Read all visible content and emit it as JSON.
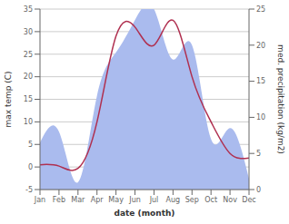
{
  "chart_data": {
    "type": "line",
    "xlabel": "date (month)",
    "ylabel": "max temp (C)",
    "y2label": "med. precipitation (kg/m2)",
    "categories": [
      "Jan",
      "Feb",
      "Mar",
      "Apr",
      "May",
      "Jun",
      "Jul",
      "Aug",
      "Sep",
      "Oct",
      "Nov",
      "Dec"
    ],
    "series": [
      {
        "type": "area",
        "axis": "y2",
        "color": "#aabbee",
        "values": [
          6.5,
          8.0,
          1.0,
          13.0,
          19.0,
          23.5,
          25.0,
          18.0,
          20.0,
          7.0,
          8.5,
          1.5
        ]
      },
      {
        "type": "line",
        "color": "#b03050",
        "values": [
          0.5,
          0.2,
          -0.3,
          10.0,
          29.0,
          31.0,
          27.0,
          32.5,
          20.0,
          10.0,
          3.0,
          2.0
        ]
      }
    ],
    "ylim": [
      -5,
      35
    ],
    "yticks": [
      -5,
      0,
      5,
      10,
      15,
      20,
      25,
      30,
      35
    ],
    "y2lim": [
      0,
      25
    ],
    "y2ticks": [
      0,
      5,
      10,
      15,
      20,
      25
    ],
    "grid": true
  }
}
